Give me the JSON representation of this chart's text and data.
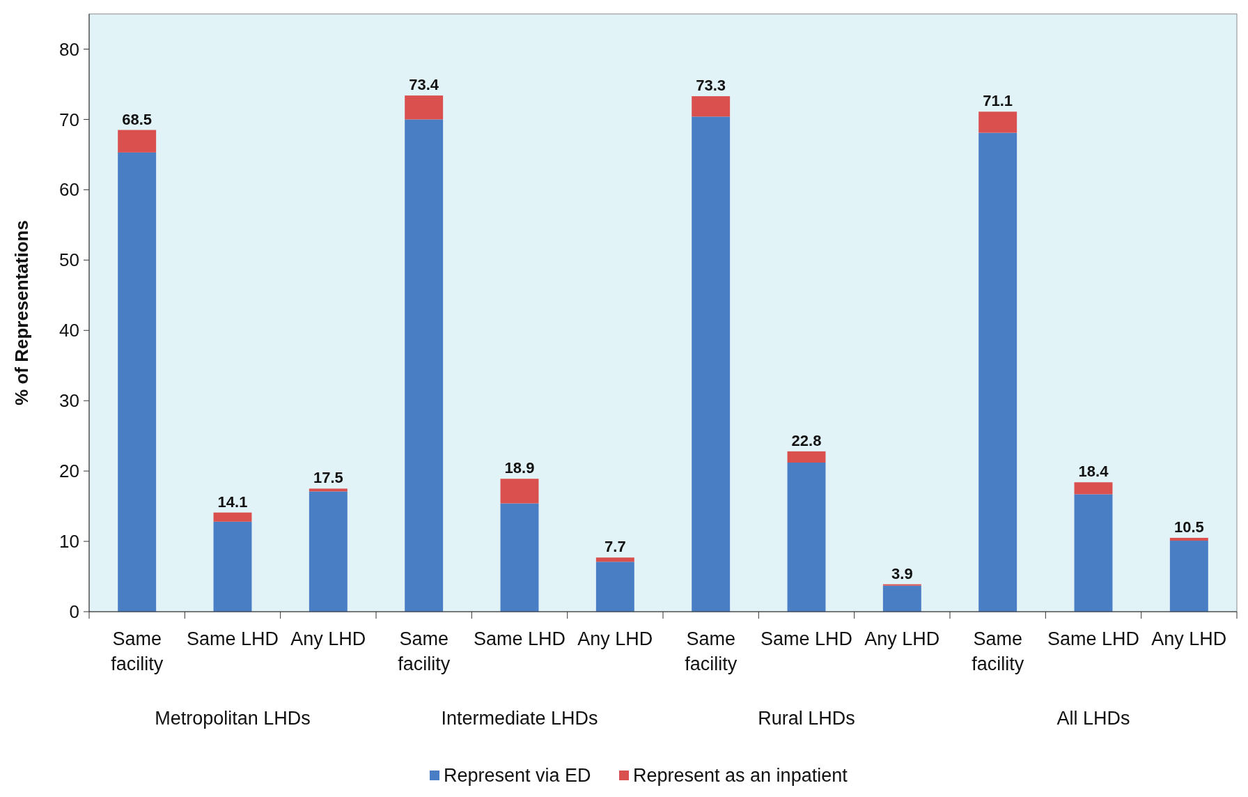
{
  "chart_data": {
    "type": "bar",
    "stacked": true,
    "ylabel": "% of Representations",
    "categories": [
      "Same facility",
      "Same LHD",
      "Any LHD",
      "Same facility",
      "Same LHD",
      "Any LHD",
      "Same facility",
      "Same LHD",
      "Any LHD",
      "Same facility",
      "Same LHD",
      "Any LHD"
    ],
    "series": [
      {
        "name": "Represent via ED",
        "color": "#4a7ec4",
        "values": [
          65.3,
          12.8,
          17.1,
          70.0,
          15.4,
          7.1,
          70.4,
          21.2,
          3.7,
          68.1,
          16.7,
          10.1
        ]
      },
      {
        "name": "Represent as an inpatient",
        "color": "#d9504f",
        "values": [
          3.2,
          1.3,
          0.4,
          3.4,
          3.5,
          0.6,
          2.9,
          1.6,
          0.2,
          3.0,
          1.7,
          0.4
        ]
      }
    ],
    "totals": [
      "68.5",
      "14.1",
      "17.5",
      "73.4",
      "18.9",
      "7.7",
      "73.3",
      "22.8",
      "3.9",
      "71.1",
      "18.4",
      "10.5"
    ],
    "annotations": [
      "Metropolitan LHDs",
      "Intermediate LHDs",
      "Rural LHDs",
      "All LHDs"
    ],
    "ylim": [
      0,
      85
    ],
    "yticks": [
      0,
      10,
      20,
      30,
      40,
      50,
      60,
      70,
      80
    ],
    "grid": false,
    "legend": "bottom"
  }
}
